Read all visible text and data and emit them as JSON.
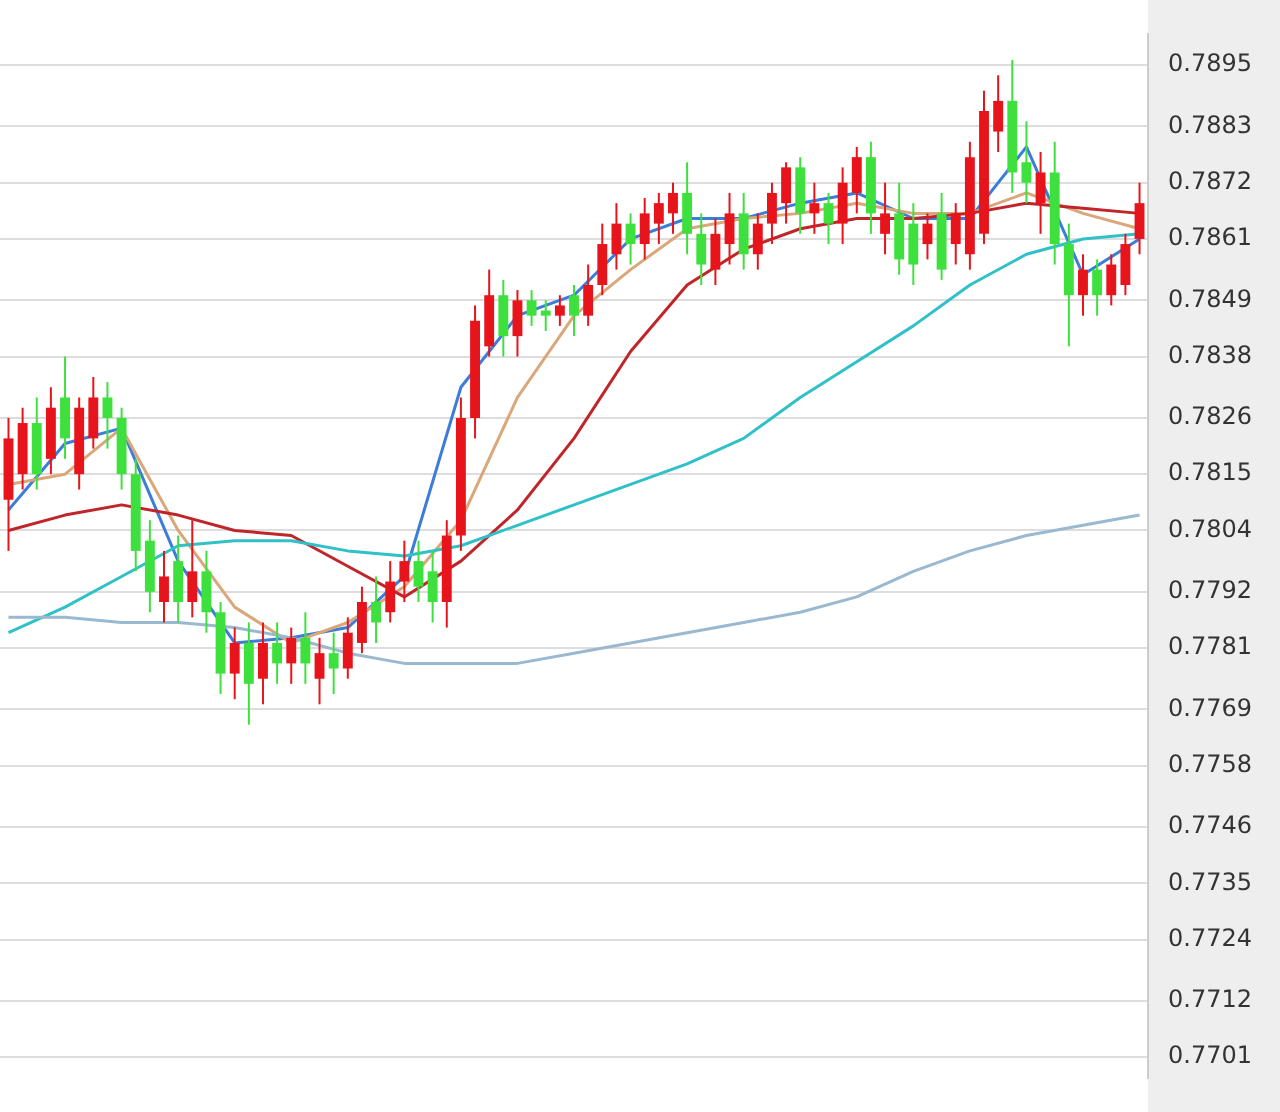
{
  "chart_data": {
    "type": "candlestick",
    "categories": [
      null,
      null,
      null,
      null,
      null,
      null,
      null,
      null,
      null,
      null,
      null,
      null,
      null,
      null,
      null,
      null,
      null,
      null,
      null,
      null,
      null,
      null,
      null,
      null,
      null,
      null,
      null,
      null,
      null,
      null,
      null,
      null,
      null,
      null,
      null,
      null,
      null,
      null,
      null,
      null,
      null,
      null,
      null,
      null,
      null,
      null,
      null,
      null,
      null,
      null,
      null,
      null,
      null,
      null,
      null,
      null,
      null,
      null,
      null,
      null,
      null,
      null,
      null,
      null,
      null,
      null,
      null,
      null,
      null,
      null,
      null,
      null,
      null,
      null,
      null,
      null,
      null,
      null,
      null,
      null,
      null
    ],
    "ohlc": [
      [
        0.781,
        0.7826,
        0.78,
        0.7822
      ],
      [
        0.7815,
        0.7828,
        0.7812,
        0.7825
      ],
      [
        0.7825,
        0.783,
        0.7812,
        0.7815
      ],
      [
        0.7818,
        0.7832,
        0.7815,
        0.7828
      ],
      [
        0.783,
        0.7838,
        0.7818,
        0.7822
      ],
      [
        0.7815,
        0.783,
        0.7812,
        0.7828
      ],
      [
        0.7822,
        0.7834,
        0.782,
        0.783
      ],
      [
        0.783,
        0.7833,
        0.782,
        0.7826
      ],
      [
        0.7826,
        0.7828,
        0.7812,
        0.7815
      ],
      [
        0.7815,
        0.7818,
        0.7796,
        0.78
      ],
      [
        0.7802,
        0.7806,
        0.7788,
        0.7792
      ],
      [
        0.779,
        0.78,
        0.7786,
        0.7795
      ],
      [
        0.7798,
        0.7803,
        0.7786,
        0.779
      ],
      [
        0.779,
        0.7806,
        0.7787,
        0.7796
      ],
      [
        0.7796,
        0.78,
        0.7784,
        0.7788
      ],
      [
        0.7788,
        0.779,
        0.7772,
        0.7776
      ],
      [
        0.7776,
        0.7785,
        0.7771,
        0.7782
      ],
      [
        0.7782,
        0.7786,
        0.7766,
        0.7774
      ],
      [
        0.7775,
        0.7786,
        0.777,
        0.7782
      ],
      [
        0.7782,
        0.7786,
        0.7774,
        0.7778
      ],
      [
        0.7778,
        0.7785,
        0.7774,
        0.7783
      ],
      [
        0.7783,
        0.7788,
        0.7774,
        0.7778
      ],
      [
        0.7775,
        0.7783,
        0.777,
        0.778
      ],
      [
        0.778,
        0.7784,
        0.7772,
        0.7777
      ],
      [
        0.7777,
        0.7787,
        0.7775,
        0.7784
      ],
      [
        0.7782,
        0.7793,
        0.778,
        0.779
      ],
      [
        0.779,
        0.7795,
        0.7782,
        0.7786
      ],
      [
        0.7788,
        0.7798,
        0.7786,
        0.7794
      ],
      [
        0.7794,
        0.7802,
        0.779,
        0.7798
      ],
      [
        0.7798,
        0.7802,
        0.779,
        0.7793
      ],
      [
        0.7796,
        0.78,
        0.7786,
        0.779
      ],
      [
        0.779,
        0.7806,
        0.7785,
        0.7803
      ],
      [
        0.7803,
        0.783,
        0.78,
        0.7826
      ],
      [
        0.7826,
        0.7848,
        0.7822,
        0.7845
      ],
      [
        0.784,
        0.7855,
        0.7838,
        0.785
      ],
      [
        0.785,
        0.7853,
        0.7838,
        0.7842
      ],
      [
        0.7842,
        0.7851,
        0.7838,
        0.7849
      ],
      [
        0.7849,
        0.7851,
        0.7844,
        0.7846
      ],
      [
        0.7847,
        0.7849,
        0.7843,
        0.7846
      ],
      [
        0.7846,
        0.785,
        0.7844,
        0.7848
      ],
      [
        0.785,
        0.7852,
        0.7842,
        0.7846
      ],
      [
        0.7846,
        0.7856,
        0.7844,
        0.7852
      ],
      [
        0.7852,
        0.7864,
        0.785,
        0.786
      ],
      [
        0.7858,
        0.7868,
        0.7855,
        0.7864
      ],
      [
        0.7864,
        0.7866,
        0.7856,
        0.786
      ],
      [
        0.786,
        0.7869,
        0.7857,
        0.7866
      ],
      [
        0.7864,
        0.787,
        0.786,
        0.7868
      ],
      [
        0.7866,
        0.7872,
        0.7862,
        0.787
      ],
      [
        0.787,
        0.7876,
        0.7858,
        0.7862
      ],
      [
        0.7862,
        0.7866,
        0.7852,
        0.7856
      ],
      [
        0.7855,
        0.7865,
        0.7852,
        0.7862
      ],
      [
        0.786,
        0.787,
        0.7856,
        0.7866
      ],
      [
        0.7866,
        0.787,
        0.7855,
        0.7858
      ],
      [
        0.7858,
        0.7866,
        0.7855,
        0.7864
      ],
      [
        0.7864,
        0.7872,
        0.786,
        0.787
      ],
      [
        0.7868,
        0.7876,
        0.7864,
        0.7875
      ],
      [
        0.7875,
        0.7877,
        0.7862,
        0.7866
      ],
      [
        0.7866,
        0.7872,
        0.7862,
        0.7868
      ],
      [
        0.7868,
        0.787,
        0.786,
        0.7864
      ],
      [
        0.7864,
        0.7875,
        0.786,
        0.7872
      ],
      [
        0.787,
        0.7879,
        0.7866,
        0.7877
      ],
      [
        0.7877,
        0.788,
        0.7862,
        0.7866
      ],
      [
        0.7862,
        0.7872,
        0.7858,
        0.7866
      ],
      [
        0.7866,
        0.7872,
        0.7854,
        0.7857
      ],
      [
        0.7864,
        0.7868,
        0.7852,
        0.7856
      ],
      [
        0.786,
        0.7866,
        0.7857,
        0.7864
      ],
      [
        0.7866,
        0.787,
        0.7853,
        0.7855
      ],
      [
        0.786,
        0.7868,
        0.7856,
        0.7866
      ],
      [
        0.7858,
        0.788,
        0.7855,
        0.7877
      ],
      [
        0.7862,
        0.789,
        0.786,
        0.7886
      ],
      [
        0.7882,
        0.7893,
        0.7878,
        0.7888
      ],
      [
        0.7888,
        0.7896,
        0.787,
        0.7874
      ],
      [
        0.7876,
        0.7884,
        0.7868,
        0.7872
      ],
      [
        0.7868,
        0.7878,
        0.7862,
        0.7874
      ],
      [
        0.7874,
        0.788,
        0.7856,
        0.786
      ],
      [
        0.786,
        0.7864,
        0.784,
        0.785
      ],
      [
        0.785,
        0.7858,
        0.7846,
        0.7855
      ],
      [
        0.7855,
        0.7857,
        0.7846,
        0.785
      ],
      [
        0.785,
        0.7858,
        0.7848,
        0.7856
      ],
      [
        0.7852,
        0.7862,
        0.785,
        0.786
      ],
      [
        0.7861,
        0.7872,
        0.7858,
        0.7868
      ]
    ],
    "series": [
      {
        "type": "line",
        "color": "#9ab8d0",
        "values": [
          0.7787,
          null,
          null,
          null,
          0.7787,
          null,
          null,
          null,
          0.7786,
          null,
          null,
          null,
          0.7786,
          null,
          null,
          null,
          0.7785,
          null,
          null,
          null,
          0.7783,
          null,
          null,
          null,
          0.778,
          null,
          null,
          null,
          0.7778,
          null,
          null,
          null,
          0.7778,
          null,
          null,
          null,
          0.7778,
          null,
          null,
          null,
          0.778,
          null,
          null,
          null,
          0.7782,
          null,
          null,
          null,
          0.7784,
          null,
          null,
          null,
          0.7786,
          null,
          null,
          null,
          0.7788,
          null,
          null,
          null,
          0.7791,
          null,
          null,
          null,
          0.7796,
          null,
          null,
          null,
          0.78,
          null,
          null,
          null,
          0.7803,
          null,
          null,
          null,
          0.7805,
          null,
          null,
          null,
          0.7807
        ]
      },
      {
        "type": "line",
        "color": "#30c0c8",
        "values": [
          0.7784,
          null,
          null,
          null,
          0.7789,
          null,
          null,
          null,
          0.7795,
          null,
          null,
          null,
          0.7801,
          null,
          null,
          null,
          0.7802,
          null,
          null,
          null,
          0.7802,
          null,
          null,
          null,
          0.78,
          null,
          null,
          null,
          0.7799,
          null,
          null,
          null,
          0.7801,
          null,
          null,
          null,
          0.7805,
          null,
          null,
          null,
          0.7809,
          null,
          null,
          null,
          0.7813,
          null,
          null,
          null,
          0.7817,
          null,
          null,
          null,
          0.7822,
          null,
          null,
          null,
          0.783,
          null,
          null,
          null,
          0.7837,
          null,
          null,
          null,
          0.7844,
          null,
          null,
          null,
          0.7852,
          null,
          null,
          null,
          0.7858,
          null,
          null,
          null,
          0.7861,
          null,
          null,
          null,
          0.7862
        ]
      },
      {
        "type": "line",
        "color": "#c0252a",
        "values": [
          0.7804,
          null,
          null,
          null,
          0.7807,
          null,
          null,
          null,
          0.7809,
          null,
          null,
          null,
          0.7807,
          null,
          null,
          null,
          0.7804,
          null,
          null,
          null,
          0.7803,
          null,
          null,
          null,
          0.7797,
          null,
          null,
          null,
          0.7791,
          null,
          null,
          null,
          0.7798,
          null,
          null,
          null,
          0.7808,
          null,
          null,
          null,
          0.7822,
          null,
          null,
          null,
          0.7839,
          null,
          null,
          null,
          0.7852,
          null,
          null,
          null,
          0.7859,
          null,
          null,
          null,
          0.7863,
          null,
          null,
          null,
          0.7865,
          null,
          null,
          null,
          0.7865,
          null,
          null,
          null,
          0.7866,
          null,
          null,
          null,
          0.7868,
          null,
          null,
          null,
          0.7867,
          null,
          null,
          null,
          0.7866
        ]
      },
      {
        "type": "line",
        "color": "#d9a77a",
        "values": [
          0.7813,
          null,
          null,
          null,
          0.7815,
          null,
          null,
          null,
          0.7824,
          null,
          null,
          null,
          0.7804,
          null,
          null,
          null,
          0.7789,
          null,
          null,
          null,
          0.7782,
          null,
          null,
          null,
          0.7786,
          null,
          null,
          null,
          0.7793,
          null,
          null,
          null,
          0.7806,
          null,
          null,
          null,
          0.783,
          null,
          null,
          null,
          0.7846,
          null,
          null,
          null,
          0.7855,
          null,
          null,
          null,
          0.7863,
          null,
          null,
          null,
          0.7865,
          null,
          null,
          null,
          0.7866,
          null,
          null,
          null,
          0.7868,
          null,
          null,
          null,
          0.7866,
          null,
          null,
          null,
          0.7866,
          null,
          null,
          null,
          0.787,
          null,
          null,
          null,
          0.7866,
          null,
          null,
          null,
          0.7863
        ]
      },
      {
        "type": "line",
        "color": "#3b7dd8",
        "values": [
          0.7808,
          null,
          null,
          null,
          0.7821,
          null,
          null,
          null,
          0.7824,
          null,
          null,
          null,
          0.7798,
          null,
          null,
          null,
          0.7782,
          null,
          null,
          null,
          0.7783,
          null,
          null,
          null,
          0.7785,
          null,
          null,
          null,
          0.7795,
          null,
          null,
          null,
          0.7832,
          null,
          null,
          null,
          0.7846,
          null,
          null,
          null,
          0.785,
          null,
          null,
          null,
          0.7861,
          null,
          null,
          null,
          0.7865,
          null,
          null,
          null,
          0.7865,
          null,
          null,
          null,
          0.7868,
          null,
          null,
          null,
          0.787,
          null,
          null,
          null,
          0.7865,
          null,
          null,
          null,
          0.7865,
          null,
          null,
          null,
          0.7879,
          null,
          null,
          null,
          0.7854,
          null,
          null,
          null,
          0.7861
        ]
      }
    ],
    "ylim": [
      0.7697,
      0.7901
    ],
    "yticks": [
      0.7895,
      0.7883,
      0.7872,
      0.7861,
      0.7849,
      0.7838,
      0.7826,
      0.7815,
      0.7804,
      0.7792,
      0.7781,
      0.7769,
      0.7758,
      0.7746,
      0.7735,
      0.7724,
      0.7712,
      0.7701
    ],
    "grid": "y",
    "legend": false,
    "tick_labels": "y"
  }
}
